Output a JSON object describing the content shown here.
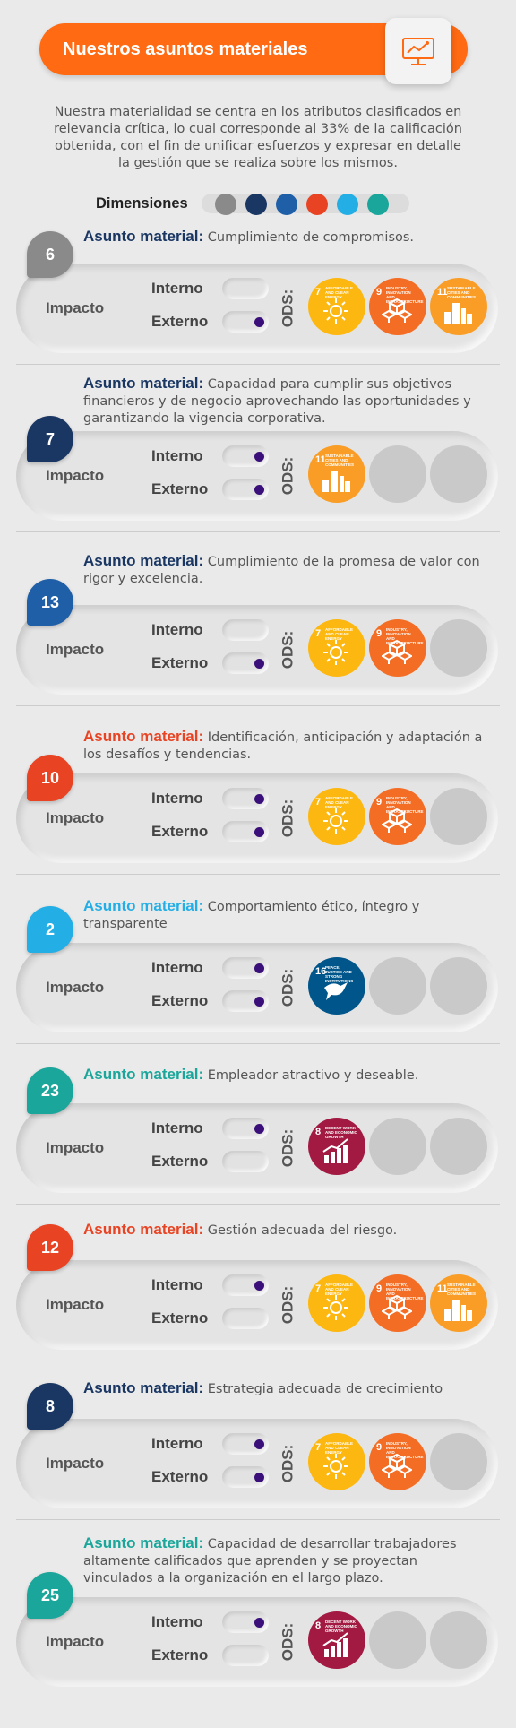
{
  "header": {
    "title": "Nuestros asuntos materiales",
    "icon": "monitor-analytics-icon"
  },
  "intro": "Nuestra materialidad se centra en los atributos clasificados en relevancia crítica, lo cual corresponde al 33% de la calificación obtenida, con el fin de unificar esfuerzos y expresar en detalle la gestión que se realiza sobre los mismos.",
  "dimensions": {
    "label": "Dimensiones",
    "colors": [
      "#8a8a8a",
      "#1a3763",
      "#1f5fa8",
      "#e84424",
      "#23aee5",
      "#1aa69a"
    ]
  },
  "labels": {
    "asunto": "Asunto material:",
    "impacto": "Impacto",
    "interno": "Interno",
    "externo": "Externo",
    "ods": "ODS:"
  },
  "sdg_defs": {
    "7": {
      "number": "7",
      "text": "AFFORDABLE AND CLEAN ENERGY",
      "color": "#fcb711",
      "icon": "sun-icon"
    },
    "9": {
      "number": "9",
      "text": "INDUSTRY, INNOVATION AND INFRASTRUCTURE",
      "color": "#f36d25",
      "icon": "cubes-icon"
    },
    "11": {
      "number": "11",
      "text": "SUSTAINABLE CITIES AND COMMUNITIES",
      "color": "#f99d26",
      "icon": "city-icon"
    },
    "16": {
      "number": "16",
      "text": "PEACE, JUSTICE AND STRONG INSTITUTIONS",
      "color": "#00558a",
      "icon": "dove-icon"
    },
    "8": {
      "number": "8",
      "text": "DECENT WORK AND ECONOMIC GROWTH",
      "color": "#a21942",
      "icon": "growth-chart-icon"
    }
  },
  "items": [
    {
      "number": "6",
      "color": "#8a8a8a",
      "title_color": "#1a3763",
      "text": "Cumplimiento de compromisos.",
      "interno": false,
      "externo": true,
      "ods": [
        "7",
        "9",
        "11"
      ]
    },
    {
      "number": "7",
      "color": "#1a3763",
      "title_color": "#1a3763",
      "text": "Capacidad para cumplir sus objetivos financieros y de negocio aprovechando las oportunidades y garantizando la vigencia corporativa.",
      "interno": true,
      "externo": true,
      "ods": [
        "11"
      ]
    },
    {
      "number": "13",
      "color": "#1f5fa8",
      "title_color": "#1a3763",
      "text": "Cumplimiento de la promesa de valor con rigor y excelencia.",
      "interno": false,
      "externo": true,
      "ods": [
        "7",
        "9"
      ]
    },
    {
      "number": "10",
      "color": "#e84424",
      "title_color": "#e84424",
      "text": "Identificación, anticipación y adaptación a los desafíos y tendencias.",
      "interno": true,
      "externo": true,
      "ods": [
        "7",
        "9"
      ]
    },
    {
      "number": "2",
      "color": "#23aee5",
      "title_color": "#23aee5",
      "text": "Comportamiento ético, íntegro y transparente",
      "interno": true,
      "externo": true,
      "ods": [
        "16"
      ]
    },
    {
      "number": "23",
      "color": "#1aa69a",
      "title_color": "#1aa69a",
      "text": " Empleador atractivo y deseable.",
      "interno": true,
      "externo": false,
      "ods": [
        "8"
      ]
    },
    {
      "number": "12",
      "color": "#e84424",
      "title_color": "#e84424",
      "text": "Gestión adecuada del riesgo.",
      "interno": true,
      "externo": false,
      "ods": [
        "7",
        "9",
        "11"
      ]
    },
    {
      "number": "8",
      "color": "#1a3763",
      "title_color": "#1a3763",
      "text": " Estrategia adecuada de crecimiento",
      "interno": true,
      "externo": true,
      "ods": [
        "7",
        "9"
      ]
    },
    {
      "number": "25",
      "color": "#1aa69a",
      "title_color": "#1aa69a",
      "text": "Capacidad de desarrollar trabajadores altamente calificados que aprenden y se proyectan vinculados a la organización en el largo plazo.",
      "interno": true,
      "externo": false,
      "ods": [
        "8"
      ]
    }
  ]
}
